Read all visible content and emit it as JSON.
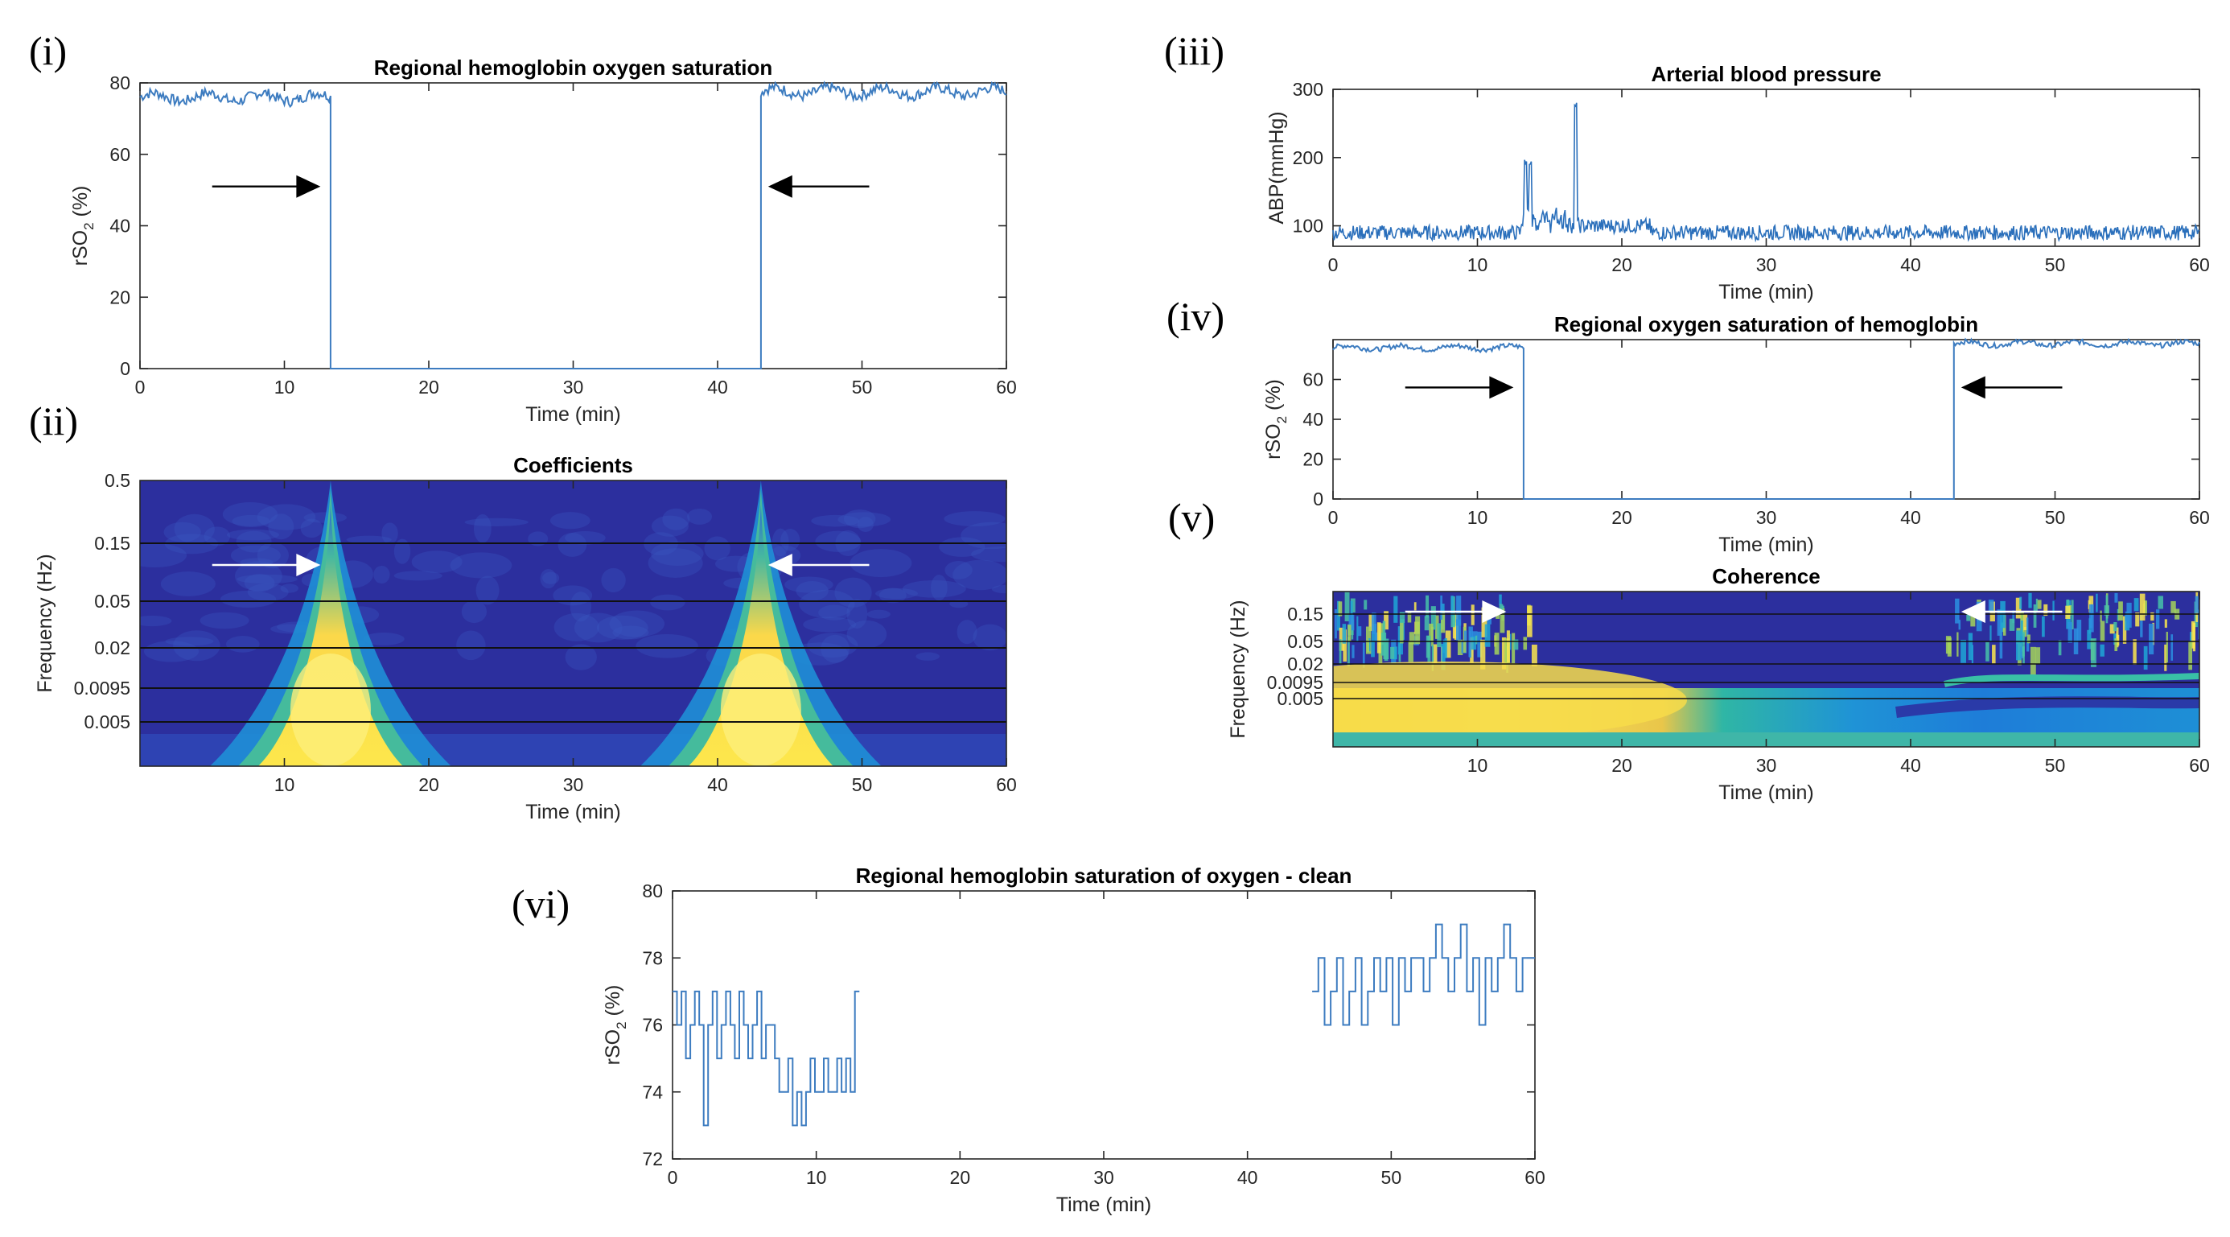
{
  "chart_data": [
    {
      "id": "i",
      "panel_label": "(i)",
      "type": "line",
      "title": "Regional hemoglobin oxygen saturation",
      "ylabel_main": "rSO",
      "ylabel_sub": "2",
      "ylabel_tail": " (%)",
      "xlabel": "Time (min)",
      "xlim": [
        0,
        60
      ],
      "ylim": [
        0,
        80
      ],
      "xticks": [
        0,
        10,
        20,
        30,
        40,
        50,
        60
      ],
      "yticks": [
        0,
        20,
        40,
        60,
        80
      ],
      "segments": [
        {
          "x": [
            0,
            13.2
          ],
          "level": 76
        },
        {
          "x": [
            13.2,
            43
          ],
          "level": 0
        },
        {
          "x": [
            43,
            60
          ],
          "level": 77.5
        }
      ],
      "arrows": [
        {
          "x_tail": 5,
          "x_head": 12.5,
          "y": 51,
          "color": "#000000"
        },
        {
          "x_tail": 50.5,
          "x_head": 43.5,
          "y": 51,
          "color": "#000000"
        }
      ]
    },
    {
      "id": "ii",
      "panel_label": "(ii)",
      "type": "heatmap",
      "title": "Coefficients",
      "ylabel": "Frequency (Hz)",
      "xlabel": "Time (min)",
      "xlim": [
        0,
        60
      ],
      "xticks": [
        10,
        20,
        30,
        40,
        50,
        60
      ],
      "yticks": [
        "0.5",
        "0.15",
        "0.05",
        "0.02",
        "0.0095",
        "0.005"
      ],
      "hot_spots_min": [
        13.2,
        43
      ],
      "arrows": [
        {
          "x_tail": 5,
          "x_head": 12.5,
          "color": "#ffffff"
        },
        {
          "x_tail": 50.5,
          "x_head": 43.5,
          "color": "#ffffff"
        }
      ]
    },
    {
      "id": "iii",
      "panel_label": "(iii)",
      "type": "line",
      "title": "Arterial blood pressure",
      "ylabel": "ABP(mmHg)",
      "xlabel": "Time (min)",
      "xlim": [
        0,
        60
      ],
      "ylim": [
        70,
        300
      ],
      "xticks": [
        0,
        10,
        20,
        30,
        40,
        50,
        60
      ],
      "yticks": [
        100,
        200,
        300
      ],
      "baseline": 90,
      "spikes": [
        {
          "x": 13.3,
          "y": 200
        },
        {
          "x": 13.7,
          "y": 195
        },
        {
          "x": 16.8,
          "y": 285
        }
      ]
    },
    {
      "id": "iv",
      "panel_label": "(iv)",
      "type": "line",
      "title": "Regional oxygen saturation of hemoglobin",
      "ylabel_main": "rSO",
      "ylabel_sub": "2",
      "ylabel_tail": " (%)",
      "xlabel": "Time (min)",
      "xlim": [
        0,
        60
      ],
      "ylim": [
        0,
        80
      ],
      "xticks": [
        0,
        10,
        20,
        30,
        40,
        50,
        60
      ],
      "yticks": [
        0,
        20,
        40,
        60
      ],
      "segments": [
        {
          "x": [
            0,
            13.2
          ],
          "level": 76
        },
        {
          "x": [
            13.2,
            43
          ],
          "level": 0
        },
        {
          "x": [
            43,
            60
          ],
          "level": 78
        }
      ],
      "arrows": [
        {
          "x_tail": 5,
          "x_head": 12.5,
          "y": 56,
          "color": "#000000"
        },
        {
          "x_tail": 50.5,
          "x_head": 43.5,
          "y": 56,
          "color": "#000000"
        }
      ]
    },
    {
      "id": "v",
      "panel_label": "(v)",
      "type": "heatmap",
      "title": "Coherence",
      "ylabel": "Frequency (Hz)",
      "xlabel": "Time (min)",
      "xlim": [
        0,
        60
      ],
      "xticks": [
        10,
        20,
        30,
        40,
        50,
        60
      ],
      "yticks": [
        "0.15",
        "0.05",
        "0.02",
        "0.0095",
        "0.005"
      ],
      "arrows": [
        {
          "x_tail": 5,
          "x_head": 12,
          "color": "#ffffff"
        },
        {
          "x_tail": 50.5,
          "x_head": 43.5,
          "color": "#ffffff"
        }
      ]
    },
    {
      "id": "vi",
      "panel_label": "(vi)",
      "type": "line",
      "title": "Regional hemoglobin saturation of oxygen - clean",
      "ylabel_main": "rSO",
      "ylabel_sub": "2",
      "ylabel_tail": " (%)",
      "xlabel": "Time (min)",
      "xlim": [
        0,
        60
      ],
      "ylim": [
        72,
        80
      ],
      "xticks": [
        0,
        10,
        20,
        30,
        40,
        50,
        60
      ],
      "yticks": [
        72,
        74,
        76,
        78,
        80
      ],
      "segments": [
        {
          "x": [
            0,
            13
          ],
          "levels": [
            77,
            76,
            77,
            75,
            76,
            77,
            76,
            73,
            76,
            77,
            75,
            76,
            77,
            76,
            75,
            77,
            76,
            75,
            76,
            77,
            75,
            76,
            76,
            75,
            74,
            74,
            75,
            73,
            74,
            73,
            74,
            75,
            74,
            74,
            75,
            74,
            74,
            75,
            74,
            75,
            74,
            77
          ]
        },
        {
          "x": [
            44.5,
            60
          ],
          "levels": [
            77,
            78,
            76,
            77,
            78,
            76,
            77,
            78,
            76,
            77,
            78,
            77,
            78,
            76,
            78,
            77,
            78,
            78,
            77,
            78,
            79,
            78,
            77,
            78,
            79,
            77,
            78,
            76,
            78,
            77,
            78,
            79,
            78,
            77,
            78,
            78
          ]
        }
      ]
    }
  ]
}
